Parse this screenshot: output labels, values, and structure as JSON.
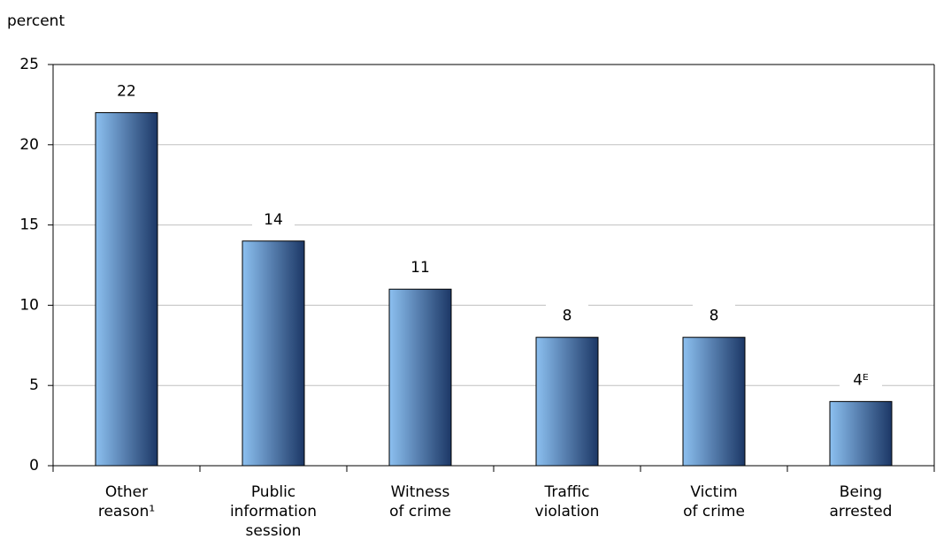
{
  "chart_data": {
    "type": "bar",
    "y_axis_label": "percent",
    "categories": [
      [
        "Other",
        "reason¹"
      ],
      [
        "Public",
        "information",
        "session"
      ],
      [
        "Witness",
        "of crime"
      ],
      [
        "Traffic",
        "violation"
      ],
      [
        "Victim",
        "of crime"
      ],
      [
        "Being",
        "arrested"
      ]
    ],
    "values": [
      22,
      14,
      11,
      8,
      8,
      4
    ],
    "value_labels": [
      "22",
      "14",
      "11",
      "8",
      "8",
      "4ᴱ"
    ],
    "color": "#8cc0f0",
    "ylim": [
      0,
      25
    ],
    "yticks": [
      0,
      5,
      10,
      15,
      20,
      25
    ],
    "grid": true
  }
}
